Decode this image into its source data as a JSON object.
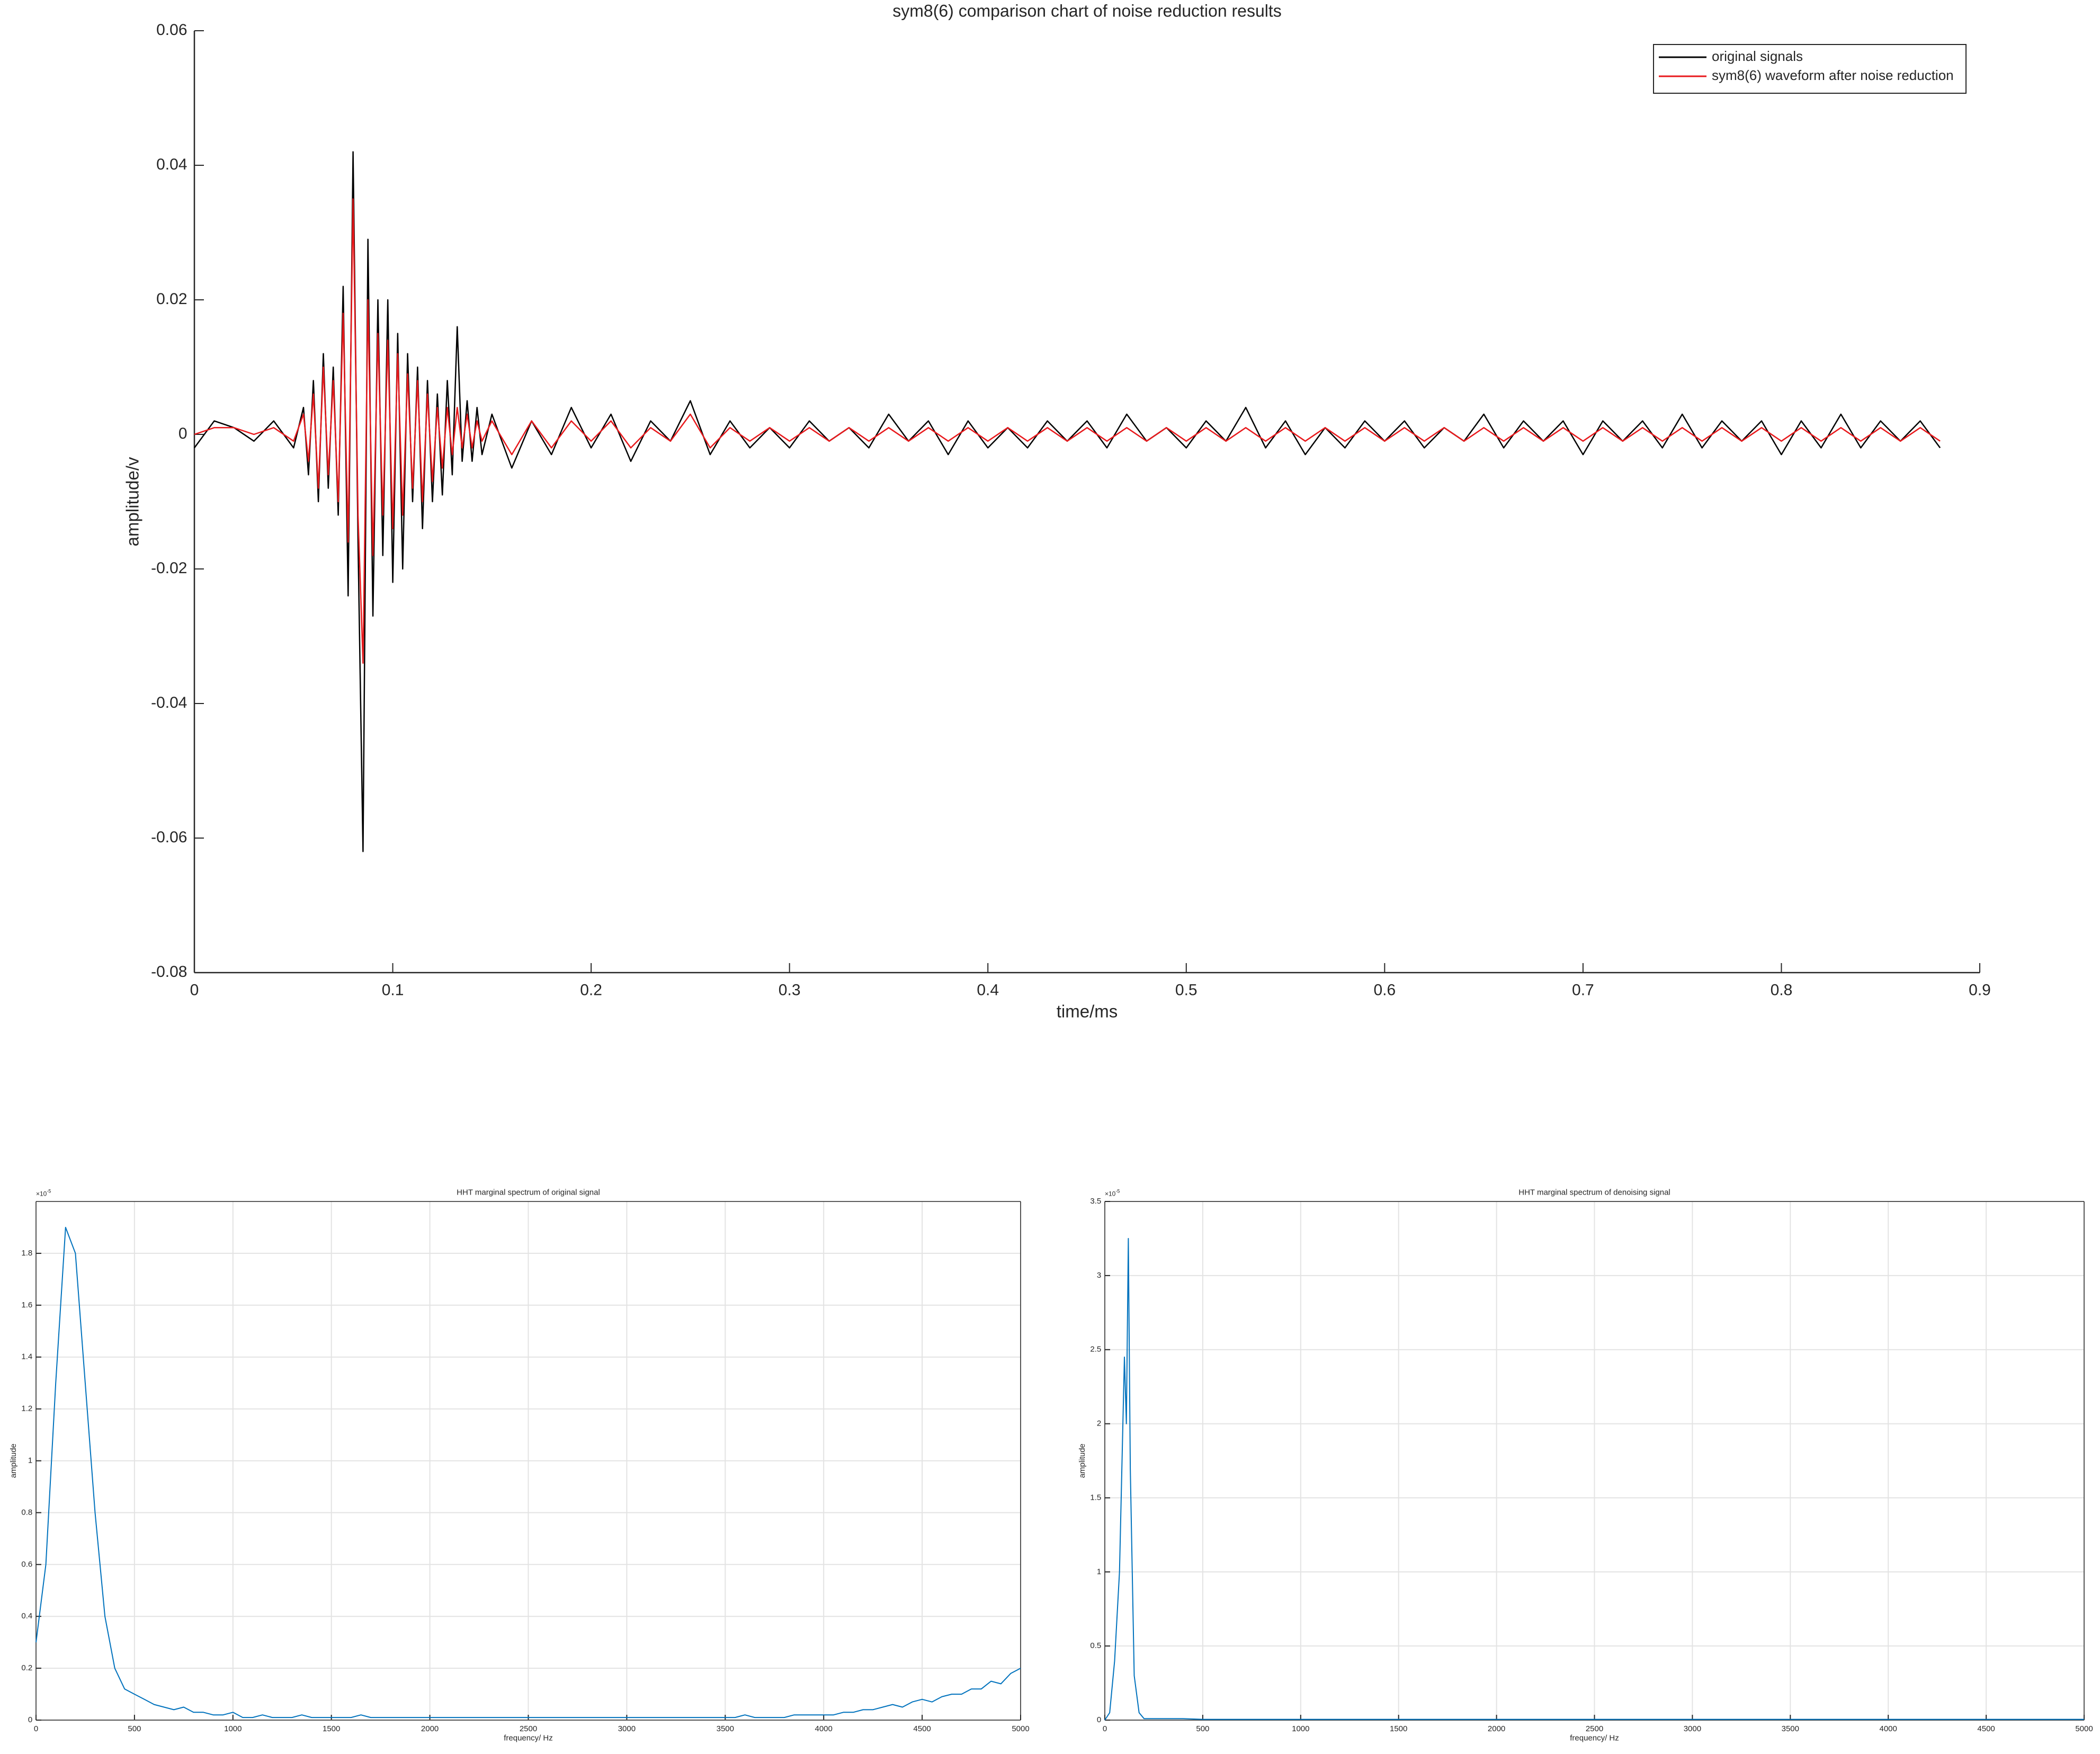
{
  "chart_data": [
    {
      "type": "line",
      "title": "sym8(6) comparison chart of noise reduction results",
      "xlabel": "time/ms",
      "ylabel": "amplitude/v",
      "xlim": [
        0,
        0.9
      ],
      "ylim": [
        -0.08,
        0.06
      ],
      "xticks": [
        0,
        0.1,
        0.2,
        0.3,
        0.4,
        0.5,
        0.6,
        0.7,
        0.8,
        0.9
      ],
      "yticks": [
        -0.08,
        -0.06,
        -0.04,
        -0.02,
        0,
        0.02,
        0.04,
        0.06
      ],
      "grid": false,
      "box": false,
      "legend": "upper right",
      "x": [
        0,
        0.01,
        0.02,
        0.03,
        0.04,
        0.05,
        0.055,
        0.0575,
        0.06,
        0.0625,
        0.065,
        0.0675,
        0.07,
        0.0725,
        0.075,
        0.0775,
        0.08,
        0.0825,
        0.085,
        0.0875,
        0.09,
        0.0925,
        0.095,
        0.0975,
        0.1,
        0.1025,
        0.105,
        0.1075,
        0.11,
        0.1125,
        0.115,
        0.1175,
        0.12,
        0.1225,
        0.125,
        0.1275,
        0.13,
        0.1325,
        0.135,
        0.1375,
        0.14,
        0.1425,
        0.145,
        0.15,
        0.16,
        0.17,
        0.18,
        0.19,
        0.2,
        0.21,
        0.22,
        0.23,
        0.24,
        0.25,
        0.26,
        0.27,
        0.28,
        0.29,
        0.3,
        0.31,
        0.32,
        0.33,
        0.34,
        0.35,
        0.36,
        0.37,
        0.38,
        0.39,
        0.4,
        0.41,
        0.42,
        0.43,
        0.44,
        0.45,
        0.46,
        0.47,
        0.48,
        0.49,
        0.5,
        0.51,
        0.52,
        0.53,
        0.54,
        0.55,
        0.56,
        0.57,
        0.58,
        0.59,
        0.6,
        0.61,
        0.62,
        0.63,
        0.64,
        0.65,
        0.66,
        0.67,
        0.68,
        0.69,
        0.7,
        0.71,
        0.72,
        0.73,
        0.74,
        0.75,
        0.76,
        0.77,
        0.78,
        0.79,
        0.8,
        0.81,
        0.82,
        0.83,
        0.84,
        0.85,
        0.86,
        0.87,
        0.88
      ],
      "series": [
        {
          "name": "original signals",
          "color": "#000000",
          "values": [
            -0.002,
            0.002,
            0.001,
            -0.001,
            0.002,
            -0.002,
            0.004,
            -0.006,
            0.008,
            -0.01,
            0.012,
            -0.008,
            0.01,
            -0.012,
            0.022,
            -0.024,
            0.042,
            -0.016,
            -0.062,
            0.029,
            -0.027,
            0.02,
            -0.018,
            0.02,
            -0.022,
            0.015,
            -0.02,
            0.012,
            -0.01,
            0.01,
            -0.014,
            0.008,
            -0.01,
            0.006,
            -0.009,
            0.008,
            -0.006,
            0.016,
            -0.004,
            0.005,
            -0.004,
            0.004,
            -0.003,
            0.003,
            -0.005,
            0.002,
            -0.003,
            0.004,
            -0.002,
            0.003,
            -0.004,
            0.002,
            -0.001,
            0.005,
            -0.003,
            0.002,
            -0.002,
            0.001,
            -0.002,
            0.002,
            -0.001,
            0.001,
            -0.002,
            0.003,
            -0.001,
            0.002,
            -0.003,
            0.002,
            -0.002,
            0.001,
            -0.002,
            0.002,
            -0.001,
            0.002,
            -0.002,
            0.003,
            -0.001,
            0.001,
            -0.002,
            0.002,
            -0.001,
            0.004,
            -0.002,
            0.002,
            -0.003,
            0.001,
            -0.002,
            0.002,
            -0.001,
            0.002,
            -0.002,
            0.001,
            -0.001,
            0.003,
            -0.002,
            0.002,
            -0.001,
            0.002,
            -0.003,
            0.002,
            -0.001,
            0.002,
            -0.002,
            0.003,
            -0.002,
            0.002,
            -0.001,
            0.002,
            -0.003,
            0.002,
            -0.002,
            0.003,
            -0.002,
            0.002,
            -0.001,
            0.002,
            -0.002
          ]
        },
        {
          "name": "sym8(6) waveform after noise reduction",
          "color": "#e8191c",
          "values": [
            0,
            0.001,
            0.001,
            0,
            0.001,
            -0.001,
            0.003,
            -0.004,
            0.006,
            -0.008,
            0.01,
            -0.006,
            0.008,
            -0.01,
            0.018,
            -0.016,
            0.035,
            -0.012,
            -0.034,
            0.02,
            -0.018,
            0.015,
            -0.012,
            0.014,
            -0.014,
            0.012,
            -0.012,
            0.009,
            -0.008,
            0.008,
            -0.01,
            0.006,
            -0.007,
            0.004,
            -0.005,
            0.004,
            -0.003,
            0.004,
            -0.002,
            0.003,
            -0.002,
            0.002,
            -0.001,
            0.002,
            -0.003,
            0.002,
            -0.002,
            0.002,
            -0.001,
            0.002,
            -0.002,
            0.001,
            -0.001,
            0.003,
            -0.002,
            0.001,
            -0.001,
            0.001,
            -0.001,
            0.001,
            -0.001,
            0.001,
            -0.001,
            0.001,
            -0.001,
            0.001,
            -0.001,
            0.001,
            -0.001,
            0.001,
            -0.001,
            0.001,
            -0.001,
            0.001,
            -0.001,
            0.001,
            -0.001,
            0.001,
            -0.001,
            0.001,
            -0.001,
            0.001,
            -0.001,
            0.001,
            -0.001,
            0.001,
            -0.001,
            0.001,
            -0.001,
            0.001,
            -0.001,
            0.001,
            -0.001,
            0.001,
            -0.001,
            0.001,
            -0.001,
            0.001,
            -0.001,
            0.001,
            -0.001,
            0.001,
            -0.001,
            0.001,
            -0.001,
            0.001,
            -0.001,
            0.001,
            -0.001,
            0.001,
            -0.001,
            0.001,
            -0.001,
            0.001,
            -0.001,
            0.001,
            -0.001
          ]
        }
      ]
    },
    {
      "type": "line",
      "title": "HHT marginal spectrum of original signal",
      "xlabel": "frequency/ Hz",
      "ylabel": "amplitude",
      "y_exponent_base": "×10",
      "y_exponent": "-5",
      "color": "#0072bd",
      "grid": true,
      "box": true,
      "xlim": [
        0,
        5000
      ],
      "ylim": [
        0,
        2
      ],
      "xticks": [
        0,
        500,
        1000,
        1500,
        2000,
        2500,
        3000,
        3500,
        4000,
        4500,
        5000
      ],
      "yticks": [
        0,
        0.2,
        0.4,
        0.6,
        0.8,
        1,
        1.2,
        1.4,
        1.6,
        1.8
      ],
      "x": [
        0,
        50,
        100,
        150,
        200,
        250,
        300,
        350,
        400,
        450,
        500,
        550,
        600,
        650,
        700,
        750,
        800,
        850,
        900,
        950,
        1000,
        1050,
        1100,
        1150,
        1200,
        1250,
        1300,
        1350,
        1400,
        1450,
        1500,
        1550,
        1600,
        1650,
        1700,
        1750,
        1800,
        1850,
        1900,
        1950,
        2000,
        2050,
        2100,
        2150,
        2200,
        2250,
        2300,
        2350,
        2400,
        2450,
        2500,
        2550,
        2600,
        2650,
        2700,
        2750,
        2800,
        2850,
        2900,
        2950,
        3000,
        3050,
        3100,
        3150,
        3200,
        3250,
        3300,
        3350,
        3400,
        3450,
        3500,
        3550,
        3600,
        3650,
        3700,
        3750,
        3800,
        3850,
        3900,
        3950,
        4000,
        4050,
        4100,
        4150,
        4200,
        4250,
        4300,
        4350,
        4400,
        4450,
        4500,
        4550,
        4600,
        4650,
        4700,
        4750,
        4800,
        4850,
        4900,
        4950,
        5000
      ],
      "values": [
        0.3,
        0.6,
        1.3,
        1.9,
        1.8,
        1.3,
        0.8,
        0.4,
        0.2,
        0.12,
        0.1,
        0.08,
        0.06,
        0.05,
        0.04,
        0.05,
        0.03,
        0.03,
        0.02,
        0.02,
        0.03,
        0.01,
        0.01,
        0.02,
        0.01,
        0.01,
        0.01,
        0.02,
        0.01,
        0.01,
        0.01,
        0.01,
        0.01,
        0.02,
        0.01,
        0.01,
        0.01,
        0.01,
        0.01,
        0.01,
        0.01,
        0.01,
        0.01,
        0.01,
        0.01,
        0.01,
        0.01,
        0.01,
        0.01,
        0.01,
        0.01,
        0.01,
        0.01,
        0.01,
        0.01,
        0.01,
        0.01,
        0.01,
        0.01,
        0.01,
        0.01,
        0.01,
        0.01,
        0.01,
        0.01,
        0.01,
        0.01,
        0.01,
        0.01,
        0.01,
        0.01,
        0.01,
        0.02,
        0.01,
        0.01,
        0.01,
        0.01,
        0.02,
        0.02,
        0.02,
        0.02,
        0.02,
        0.03,
        0.03,
        0.04,
        0.04,
        0.05,
        0.06,
        0.05,
        0.07,
        0.08,
        0.07,
        0.09,
        0.1,
        0.1,
        0.12,
        0.12,
        0.15,
        0.14,
        0.18,
        0.2
      ]
    },
    {
      "type": "line",
      "title": "HHT marginal spectrum of denoising signal",
      "xlabel": "frequency/ Hz",
      "ylabel": "amplitude",
      "y_exponent_base": "×10",
      "y_exponent": "-5",
      "color": "#0072bd",
      "grid": true,
      "box": true,
      "xlim": [
        0,
        5000
      ],
      "ylim": [
        0,
        3.5
      ],
      "xticks": [
        0,
        500,
        1000,
        1500,
        2000,
        2500,
        3000,
        3500,
        4000,
        4500,
        5000
      ],
      "yticks": [
        0,
        0.5,
        1,
        1.5,
        2,
        2.5,
        3,
        3.5
      ],
      "x": [
        0,
        25,
        50,
        75,
        100,
        110,
        120,
        130,
        140,
        150,
        175,
        200,
        300,
        400,
        500,
        600,
        700,
        800,
        900,
        1000,
        1100,
        1200,
        1300,
        1400,
        1500,
        1600,
        1700,
        1800,
        1900,
        2000,
        2100,
        2200,
        2300,
        2400,
        2500,
        2600,
        2700,
        2800,
        2900,
        3000,
        3100,
        3200,
        3300,
        3400,
        3500,
        3600,
        3700,
        3800,
        3900,
        4000,
        4100,
        4200,
        4300,
        4400,
        4500,
        4600,
        4700,
        4800,
        4900,
        5000
      ],
      "values": [
        0,
        0.05,
        0.4,
        1,
        2.45,
        2,
        3.25,
        1.7,
        1,
        0.3,
        0.05,
        0.01,
        0.01,
        0.01,
        0.005,
        0.005,
        0.005,
        0.005,
        0.005,
        0.005,
        0.005,
        0.005,
        0.005,
        0.005,
        0.005,
        0.005,
        0.005,
        0.005,
        0.005,
        0.005,
        0.005,
        0.005,
        0.005,
        0.005,
        0.005,
        0.005,
        0.005,
        0.005,
        0.005,
        0.005,
        0.005,
        0.005,
        0.005,
        0.005,
        0.005,
        0.005,
        0.005,
        0.005,
        0.005,
        0.005,
        0.005,
        0.005,
        0.005,
        0.005,
        0.005,
        0.005,
        0.005,
        0.005,
        0.005,
        0.005
      ]
    }
  ]
}
